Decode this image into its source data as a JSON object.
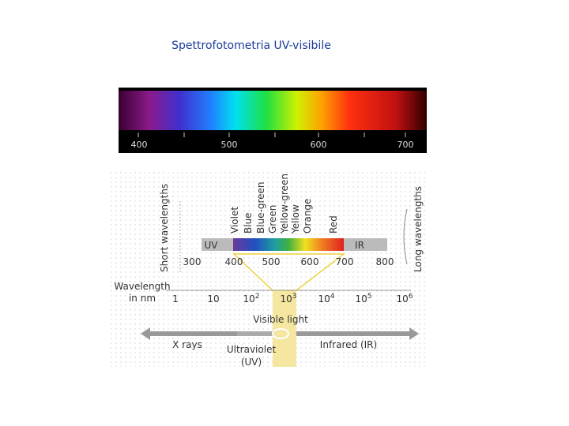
{
  "title": "Spettrofotometria UV-visibile",
  "spectrum": {
    "ticks": [
      "400",
      "500",
      "600",
      "700"
    ]
  },
  "diagram": {
    "colors": [
      "Violet",
      "Blue",
      "Blue-green",
      "Green",
      "Yellow-green",
      "Yellow",
      "Orange",
      "Red"
    ],
    "left_label": "Short wavelengths",
    "right_label": "Long wavelengths",
    "band_labels": [
      "UV",
      "IR"
    ],
    "band_ticks": [
      "300",
      "400",
      "500",
      "600",
      "700",
      "800"
    ],
    "wavelength_label": [
      "Wavelength",
      "in nm"
    ],
    "scale_ticks": [
      {
        "base": "1"
      },
      {
        "base": "10"
      },
      {
        "base": "10",
        "exponent": "2"
      },
      {
        "base": "10",
        "exponent": "3"
      },
      {
        "base": "10",
        "exponent": "4"
      },
      {
        "base": "10",
        "exponent": "5"
      },
      {
        "base": "10",
        "exponent": "6"
      }
    ],
    "visible_light": "Visible light",
    "xrays": "X rays",
    "ultraviolet": [
      "Ultraviolet",
      "(UV)"
    ],
    "infrared": "Infrared (IR)"
  }
}
